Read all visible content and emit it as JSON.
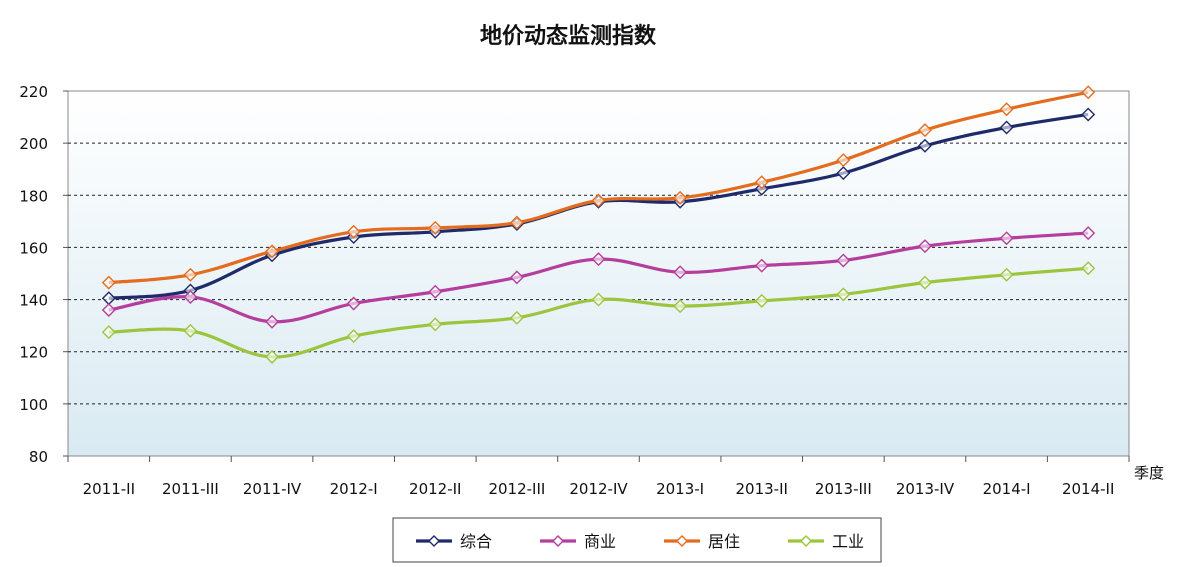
{
  "chart_data": {
    "type": "line",
    "title": "地价动态监测指数",
    "xlabel": "季度",
    "ylabel": "",
    "ylim": [
      80,
      220
    ],
    "yticks": [
      80,
      100,
      120,
      140,
      160,
      180,
      200,
      220
    ],
    "grid": "horizontal-dashed",
    "legend_position": "bottom",
    "categories": [
      "2011-II",
      "2011-III",
      "2011-IV",
      "2012-I",
      "2012-II",
      "2012-III",
      "2012-IV",
      "2013-I",
      "2013-II",
      "2013-III",
      "2013-IV",
      "2014-I",
      "2014-II"
    ],
    "series": [
      {
        "name": "综合",
        "color": "#1f2a6b",
        "values": [
          140.5,
          143.5,
          157,
          164,
          166,
          169,
          177.5,
          177.5,
          182.5,
          188.5,
          199,
          206,
          211
        ]
      },
      {
        "name": "商业",
        "color": "#b43d9d",
        "values": [
          136,
          141,
          131.5,
          138.5,
          143,
          148.5,
          155.5,
          150.5,
          153,
          155,
          160.5,
          163.5,
          165.5
        ]
      },
      {
        "name": "居住",
        "color": "#e46c1e",
        "values": [
          146.5,
          149.5,
          158.5,
          166,
          167.5,
          169.5,
          178,
          179,
          185,
          193.5,
          205,
          213,
          219.5
        ]
      },
      {
        "name": "工业",
        "color": "#9cc53d",
        "values": [
          127.5,
          128,
          118,
          126,
          130.5,
          133,
          140,
          137.5,
          139.5,
          142,
          146.5,
          149.5,
          152
        ]
      }
    ]
  }
}
